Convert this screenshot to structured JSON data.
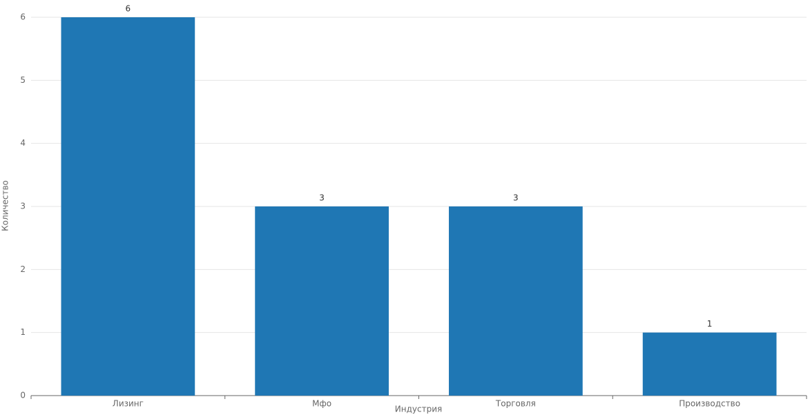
{
  "chart_data": {
    "type": "bar",
    "categories": [
      "Лизинг",
      "Мфо",
      "Торговля",
      "Производство"
    ],
    "values": [
      6,
      3,
      3,
      1
    ],
    "color": "#1f77b4",
    "x_label": "Индустрия",
    "y_label": "Количество",
    "ylim": [
      0,
      6
    ],
    "yticks": [
      0,
      1,
      2,
      3,
      4,
      5,
      6
    ],
    "grid": true
  }
}
